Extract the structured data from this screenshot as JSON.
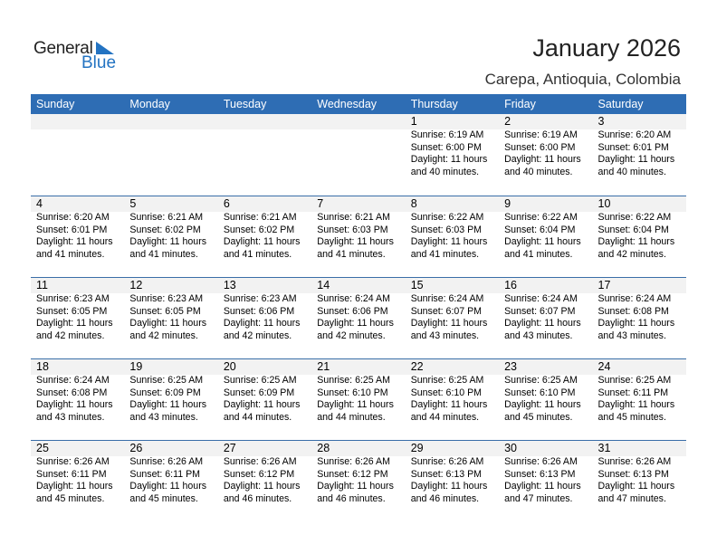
{
  "logo": {
    "text_general": "General",
    "text_blue": "Blue"
  },
  "header": {
    "title": "January 2026",
    "location": "Carepa, Antioquia, Colombia"
  },
  "days": [
    "Sunday",
    "Monday",
    "Tuesday",
    "Wednesday",
    "Thursday",
    "Friday",
    "Saturday"
  ],
  "colors": {
    "header_bg": "#2e6db4",
    "logo_blue": "#2373c2",
    "date_row_bg": "#f2f2f2"
  },
  "weeks": [
    [
      null,
      null,
      null,
      null,
      {
        "day": "1",
        "sunrise": "Sunrise: 6:19 AM",
        "sunset": "Sunset: 6:00 PM",
        "daylight1": "Daylight: 11 hours",
        "daylight2": "and 40 minutes."
      },
      {
        "day": "2",
        "sunrise": "Sunrise: 6:19 AM",
        "sunset": "Sunset: 6:00 PM",
        "daylight1": "Daylight: 11 hours",
        "daylight2": "and 40 minutes."
      },
      {
        "day": "3",
        "sunrise": "Sunrise: 6:20 AM",
        "sunset": "Sunset: 6:01 PM",
        "daylight1": "Daylight: 11 hours",
        "daylight2": "and 40 minutes."
      }
    ],
    [
      {
        "day": "4",
        "sunrise": "Sunrise: 6:20 AM",
        "sunset": "Sunset: 6:01 PM",
        "daylight1": "Daylight: 11 hours",
        "daylight2": "and 41 minutes."
      },
      {
        "day": "5",
        "sunrise": "Sunrise: 6:21 AM",
        "sunset": "Sunset: 6:02 PM",
        "daylight1": "Daylight: 11 hours",
        "daylight2": "and 41 minutes."
      },
      {
        "day": "6",
        "sunrise": "Sunrise: 6:21 AM",
        "sunset": "Sunset: 6:02 PM",
        "daylight1": "Daylight: 11 hours",
        "daylight2": "and 41 minutes."
      },
      {
        "day": "7",
        "sunrise": "Sunrise: 6:21 AM",
        "sunset": "Sunset: 6:03 PM",
        "daylight1": "Daylight: 11 hours",
        "daylight2": "and 41 minutes."
      },
      {
        "day": "8",
        "sunrise": "Sunrise: 6:22 AM",
        "sunset": "Sunset: 6:03 PM",
        "daylight1": "Daylight: 11 hours",
        "daylight2": "and 41 minutes."
      },
      {
        "day": "9",
        "sunrise": "Sunrise: 6:22 AM",
        "sunset": "Sunset: 6:04 PM",
        "daylight1": "Daylight: 11 hours",
        "daylight2": "and 41 minutes."
      },
      {
        "day": "10",
        "sunrise": "Sunrise: 6:22 AM",
        "sunset": "Sunset: 6:04 PM",
        "daylight1": "Daylight: 11 hours",
        "daylight2": "and 42 minutes."
      }
    ],
    [
      {
        "day": "11",
        "sunrise": "Sunrise: 6:23 AM",
        "sunset": "Sunset: 6:05 PM",
        "daylight1": "Daylight: 11 hours",
        "daylight2": "and 42 minutes."
      },
      {
        "day": "12",
        "sunrise": "Sunrise: 6:23 AM",
        "sunset": "Sunset: 6:05 PM",
        "daylight1": "Daylight: 11 hours",
        "daylight2": "and 42 minutes."
      },
      {
        "day": "13",
        "sunrise": "Sunrise: 6:23 AM",
        "sunset": "Sunset: 6:06 PM",
        "daylight1": "Daylight: 11 hours",
        "daylight2": "and 42 minutes."
      },
      {
        "day": "14",
        "sunrise": "Sunrise: 6:24 AM",
        "sunset": "Sunset: 6:06 PM",
        "daylight1": "Daylight: 11 hours",
        "daylight2": "and 42 minutes."
      },
      {
        "day": "15",
        "sunrise": "Sunrise: 6:24 AM",
        "sunset": "Sunset: 6:07 PM",
        "daylight1": "Daylight: 11 hours",
        "daylight2": "and 43 minutes."
      },
      {
        "day": "16",
        "sunrise": "Sunrise: 6:24 AM",
        "sunset": "Sunset: 6:07 PM",
        "daylight1": "Daylight: 11 hours",
        "daylight2": "and 43 minutes."
      },
      {
        "day": "17",
        "sunrise": "Sunrise: 6:24 AM",
        "sunset": "Sunset: 6:08 PM",
        "daylight1": "Daylight: 11 hours",
        "daylight2": "and 43 minutes."
      }
    ],
    [
      {
        "day": "18",
        "sunrise": "Sunrise: 6:24 AM",
        "sunset": "Sunset: 6:08 PM",
        "daylight1": "Daylight: 11 hours",
        "daylight2": "and 43 minutes."
      },
      {
        "day": "19",
        "sunrise": "Sunrise: 6:25 AM",
        "sunset": "Sunset: 6:09 PM",
        "daylight1": "Daylight: 11 hours",
        "daylight2": "and 43 minutes."
      },
      {
        "day": "20",
        "sunrise": "Sunrise: 6:25 AM",
        "sunset": "Sunset: 6:09 PM",
        "daylight1": "Daylight: 11 hours",
        "daylight2": "and 44 minutes."
      },
      {
        "day": "21",
        "sunrise": "Sunrise: 6:25 AM",
        "sunset": "Sunset: 6:10 PM",
        "daylight1": "Daylight: 11 hours",
        "daylight2": "and 44 minutes."
      },
      {
        "day": "22",
        "sunrise": "Sunrise: 6:25 AM",
        "sunset": "Sunset: 6:10 PM",
        "daylight1": "Daylight: 11 hours",
        "daylight2": "and 44 minutes."
      },
      {
        "day": "23",
        "sunrise": "Sunrise: 6:25 AM",
        "sunset": "Sunset: 6:10 PM",
        "daylight1": "Daylight: 11 hours",
        "daylight2": "and 45 minutes."
      },
      {
        "day": "24",
        "sunrise": "Sunrise: 6:25 AM",
        "sunset": "Sunset: 6:11 PM",
        "daylight1": "Daylight: 11 hours",
        "daylight2": "and 45 minutes."
      }
    ],
    [
      {
        "day": "25",
        "sunrise": "Sunrise: 6:26 AM",
        "sunset": "Sunset: 6:11 PM",
        "daylight1": "Daylight: 11 hours",
        "daylight2": "and 45 minutes."
      },
      {
        "day": "26",
        "sunrise": "Sunrise: 6:26 AM",
        "sunset": "Sunset: 6:11 PM",
        "daylight1": "Daylight: 11 hours",
        "daylight2": "and 45 minutes."
      },
      {
        "day": "27",
        "sunrise": "Sunrise: 6:26 AM",
        "sunset": "Sunset: 6:12 PM",
        "daylight1": "Daylight: 11 hours",
        "daylight2": "and 46 minutes."
      },
      {
        "day": "28",
        "sunrise": "Sunrise: 6:26 AM",
        "sunset": "Sunset: 6:12 PM",
        "daylight1": "Daylight: 11 hours",
        "daylight2": "and 46 minutes."
      },
      {
        "day": "29",
        "sunrise": "Sunrise: 6:26 AM",
        "sunset": "Sunset: 6:13 PM",
        "daylight1": "Daylight: 11 hours",
        "daylight2": "and 46 minutes."
      },
      {
        "day": "30",
        "sunrise": "Sunrise: 6:26 AM",
        "sunset": "Sunset: 6:13 PM",
        "daylight1": "Daylight: 11 hours",
        "daylight2": "and 47 minutes."
      },
      {
        "day": "31",
        "sunrise": "Sunrise: 6:26 AM",
        "sunset": "Sunset: 6:13 PM",
        "daylight1": "Daylight: 11 hours",
        "daylight2": "and 47 minutes."
      }
    ]
  ]
}
